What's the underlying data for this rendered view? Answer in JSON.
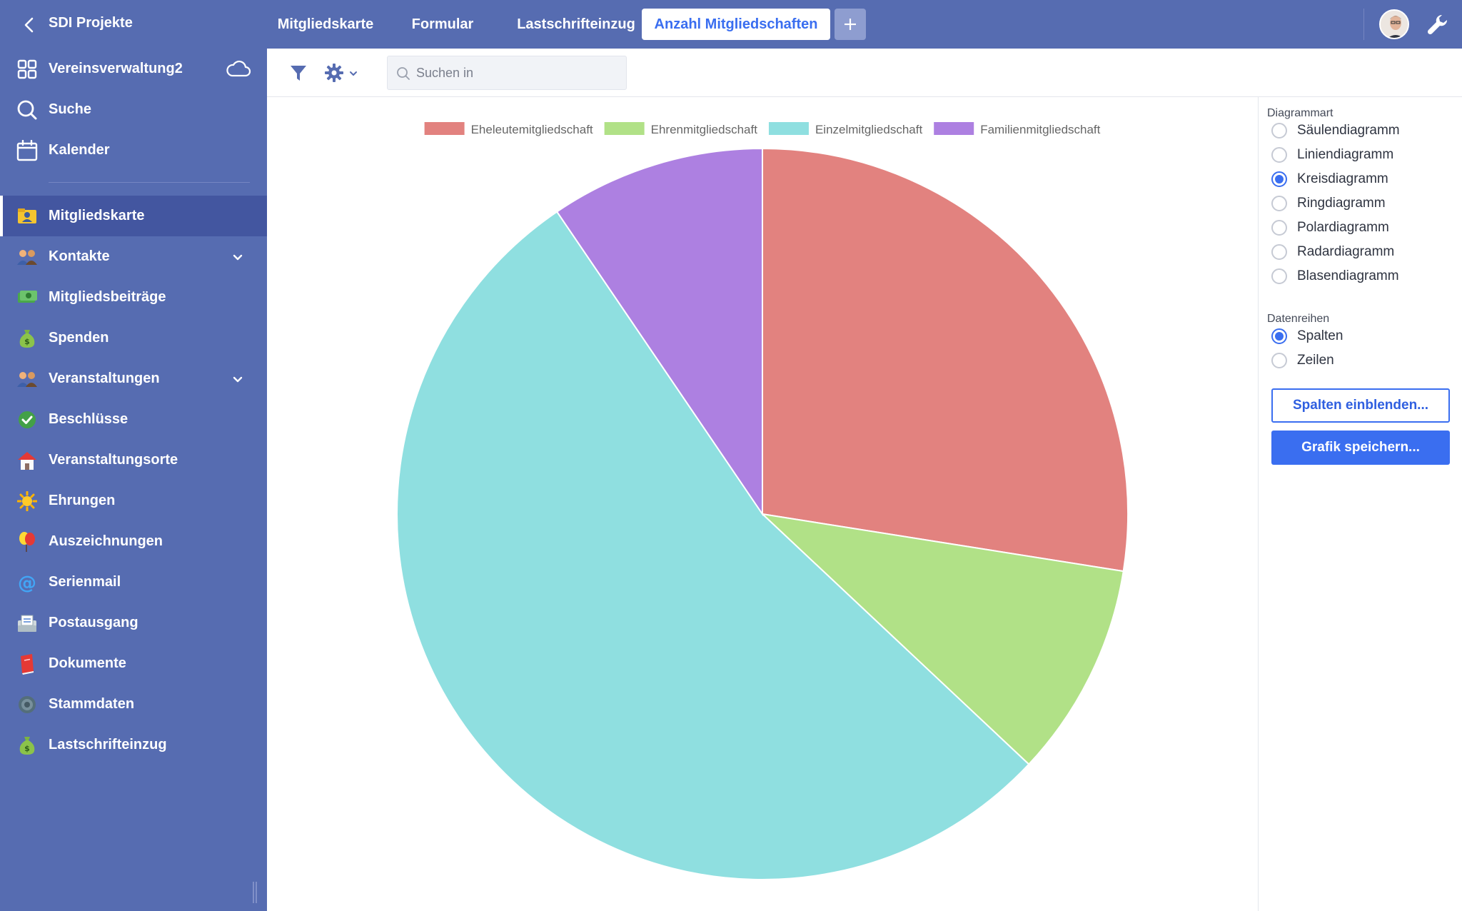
{
  "app": {
    "title": "SDI Projekte",
    "project_name": "Vereinsverwaltung2"
  },
  "sidebar": {
    "top_items": [
      {
        "label": "Vereinsverwaltung2",
        "icon": "grid-icon"
      },
      {
        "label": "Suche",
        "icon": "search-icon"
      },
      {
        "label": "Kalender",
        "icon": "calendar-icon"
      }
    ],
    "items": [
      {
        "label": "Mitgliedskarte",
        "icon": "member-card-icon",
        "active": true
      },
      {
        "label": "Kontakte",
        "icon": "contacts-icon",
        "expandable": true
      },
      {
        "label": "Mitgliedsbeiträge",
        "icon": "money-icon"
      },
      {
        "label": "Spenden",
        "icon": "money-bag-icon"
      },
      {
        "label": "Veranstaltungen",
        "icon": "people-icon",
        "expandable": true
      },
      {
        "label": "Beschlüsse",
        "icon": "check-icon"
      },
      {
        "label": "Veranstaltungsorte",
        "icon": "house-icon"
      },
      {
        "label": "Ehrungen",
        "icon": "sun-icon"
      },
      {
        "label": "Auszeichnungen",
        "icon": "balloon-icon"
      },
      {
        "label": "Serienmail",
        "icon": "at-icon"
      },
      {
        "label": "Postausgang",
        "icon": "outbox-icon"
      },
      {
        "label": "Dokumente",
        "icon": "book-icon"
      },
      {
        "label": "Stammdaten",
        "icon": "gear-icon"
      },
      {
        "label": "Lastschrifteinzug",
        "icon": "money-bag-icon"
      }
    ]
  },
  "tabs": [
    {
      "label": "Mitgliedskarte",
      "active": false
    },
    {
      "label": "Formular",
      "active": false
    },
    {
      "label": "Lastschrifteinzug",
      "active": false
    },
    {
      "label": "Anzahl Mitgliedschaften",
      "active": true
    }
  ],
  "toolbar": {
    "search_placeholder": "Suchen in"
  },
  "right_panel": {
    "chart_type_heading": "Diagrammart",
    "chart_types": [
      {
        "label": "Säulendiagramm",
        "selected": false
      },
      {
        "label": "Liniendiagramm",
        "selected": false
      },
      {
        "label": "Kreisdiagramm",
        "selected": true
      },
      {
        "label": "Ringdiagramm",
        "selected": false
      },
      {
        "label": "Polardiagramm",
        "selected": false
      },
      {
        "label": "Radardiagramm",
        "selected": false
      },
      {
        "label": "Blasendiagramm",
        "selected": false
      }
    ],
    "series_heading": "Datenreihen",
    "series_options": [
      {
        "label": "Spalten",
        "selected": true
      },
      {
        "label": "Zeilen",
        "selected": false
      }
    ],
    "show_columns_button": "Spalten einblenden...",
    "save_chart_button": "Grafik speichern..."
  },
  "colors": {
    "sidebar_bg": "#566cb1",
    "accent": "#3a6ef0"
  },
  "chart_data": {
    "type": "pie",
    "categories": [
      "Eheleutemitgliedschaft",
      "Ehrenmitgliedschaft",
      "Einzelmitgliedschaft",
      "Familienmitgliedschaft"
    ],
    "values": [
      27.5,
      9.5,
      53.5,
      9.5
    ],
    "colors": [
      "#e2827f",
      "#b1e187",
      "#8fdfe0",
      "#ad80e1"
    ],
    "legend_position": "top"
  }
}
